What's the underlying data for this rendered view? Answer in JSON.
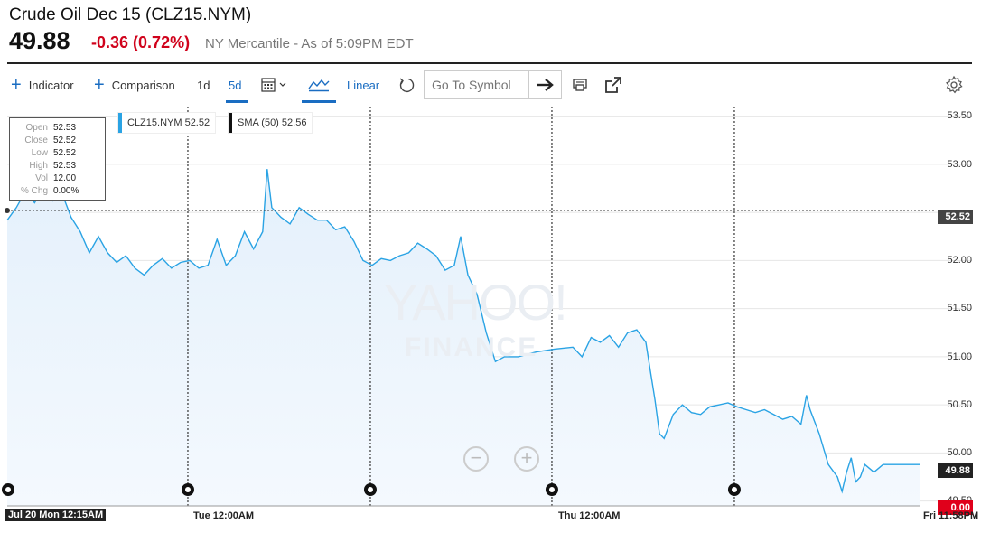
{
  "header": {
    "title": "Crude Oil Dec 15 (CLZ15.NYM)",
    "price": "49.88",
    "change": "-0.36",
    "change_pct": "(0.72%)",
    "exchange": "NY Mercantile - As of 5:09PM EDT",
    "change_color": "#d0021b"
  },
  "toolbar": {
    "indicator_label": "Indicator",
    "comparison_label": "Comparison",
    "range_1d": "1d",
    "range_5d": "5d",
    "scale_label": "Linear",
    "search_placeholder": "Go To Symbol",
    "icons": [
      "plus-icon",
      "calendar-icon",
      "mountain-chart-icon",
      "undo-icon",
      "arrow-right-icon",
      "print-icon",
      "share-icon",
      "gear-icon"
    ]
  },
  "tooltip": {
    "rows": [
      {
        "k": "Open",
        "v": "52.53"
      },
      {
        "k": "Close",
        "v": "52.52"
      },
      {
        "k": "Low",
        "v": "52.52"
      },
      {
        "k": "High",
        "v": "52.53"
      },
      {
        "k": "Vol",
        "v": "12.00"
      },
      {
        "k": "% Chg",
        "v": "0.00%"
      }
    ]
  },
  "legend": {
    "series_label": "CLZ15.NYM 52.52",
    "sma_label": "SMA (50) 52.56",
    "series_color": "#2aa3e4",
    "sma_color": "#111111"
  },
  "watermark": {
    "line1": "YAHOO!",
    "line2": "FINANCE"
  },
  "price_tags": {
    "current_price": "52.52",
    "last": "49.88",
    "change": "0.00"
  },
  "y_tick_labels": [
    "53.50",
    "53.00",
    "52.50",
    "52.00",
    "51.50",
    "51.00",
    "50.50",
    "50.00",
    "49.50"
  ],
  "x_tick_labels": {
    "start": "Jul 20 Mon 12:15AM",
    "tue": "Tue 12:00AM",
    "thu": "Thu 12:00AM",
    "fri": "Fri 11:58PM"
  },
  "chart_data": {
    "type": "area",
    "series": [
      {
        "name": "CLZ15.NYM",
        "points": [
          [
            0.0,
            52.42
          ],
          [
            0.01,
            52.55
          ],
          [
            0.02,
            52.72
          ],
          [
            0.03,
            52.6
          ],
          [
            0.04,
            52.75
          ],
          [
            0.05,
            52.62
          ],
          [
            0.06,
            52.7
          ],
          [
            0.07,
            52.45
          ],
          [
            0.08,
            52.3
          ],
          [
            0.09,
            52.08
          ],
          [
            0.1,
            52.25
          ],
          [
            0.11,
            52.08
          ],
          [
            0.12,
            51.98
          ],
          [
            0.13,
            52.05
          ],
          [
            0.14,
            51.92
          ],
          [
            0.15,
            51.85
          ],
          [
            0.16,
            51.95
          ],
          [
            0.17,
            52.02
          ],
          [
            0.18,
            51.92
          ],
          [
            0.19,
            51.98
          ],
          [
            0.2,
            52.0
          ],
          [
            0.21,
            51.92
          ],
          [
            0.22,
            51.95
          ],
          [
            0.23,
            52.22
          ],
          [
            0.24,
            51.95
          ],
          [
            0.25,
            52.05
          ],
          [
            0.26,
            52.3
          ],
          [
            0.27,
            52.12
          ],
          [
            0.28,
            52.3
          ],
          [
            0.285,
            52.95
          ],
          [
            0.29,
            52.55
          ],
          [
            0.3,
            52.45
          ],
          [
            0.31,
            52.38
          ],
          [
            0.32,
            52.55
          ],
          [
            0.33,
            52.48
          ],
          [
            0.34,
            52.42
          ],
          [
            0.35,
            52.42
          ],
          [
            0.36,
            52.32
          ],
          [
            0.37,
            52.35
          ],
          [
            0.38,
            52.2
          ],
          [
            0.39,
            52.0
          ],
          [
            0.4,
            51.95
          ],
          [
            0.41,
            52.02
          ],
          [
            0.42,
            52.0
          ],
          [
            0.43,
            52.05
          ],
          [
            0.44,
            52.08
          ],
          [
            0.45,
            52.18
          ],
          [
            0.46,
            52.12
          ],
          [
            0.47,
            52.05
          ],
          [
            0.48,
            51.9
          ],
          [
            0.49,
            51.95
          ],
          [
            0.497,
            52.25
          ],
          [
            0.505,
            51.85
          ],
          [
            0.515,
            51.65
          ],
          [
            0.525,
            51.25
          ],
          [
            0.535,
            50.95
          ],
          [
            0.545,
            51.0
          ],
          [
            0.56,
            51.0
          ],
          [
            0.58,
            51.05
          ],
          [
            0.6,
            51.08
          ],
          [
            0.62,
            51.1
          ],
          [
            0.63,
            51.0
          ],
          [
            0.64,
            51.2
          ],
          [
            0.65,
            51.15
          ],
          [
            0.66,
            51.22
          ],
          [
            0.67,
            51.1
          ],
          [
            0.68,
            51.25
          ],
          [
            0.69,
            51.28
          ],
          [
            0.7,
            51.15
          ],
          [
            0.705,
            50.85
          ],
          [
            0.71,
            50.55
          ],
          [
            0.715,
            50.2
          ],
          [
            0.72,
            50.15
          ],
          [
            0.73,
            50.4
          ],
          [
            0.74,
            50.5
          ],
          [
            0.75,
            50.42
          ],
          [
            0.76,
            50.4
          ],
          [
            0.77,
            50.48
          ],
          [
            0.78,
            50.5
          ],
          [
            0.79,
            50.52
          ],
          [
            0.8,
            50.48
          ],
          [
            0.81,
            50.45
          ],
          [
            0.82,
            50.42
          ],
          [
            0.83,
            50.45
          ],
          [
            0.84,
            50.4
          ],
          [
            0.85,
            50.35
          ],
          [
            0.86,
            50.38
          ],
          [
            0.87,
            50.3
          ],
          [
            0.876,
            50.6
          ],
          [
            0.88,
            50.45
          ],
          [
            0.89,
            50.2
          ],
          [
            0.9,
            49.88
          ],
          [
            0.91,
            49.75
          ],
          [
            0.915,
            49.6
          ],
          [
            0.92,
            49.8
          ],
          [
            0.925,
            49.95
          ],
          [
            0.93,
            49.7
          ],
          [
            0.935,
            49.75
          ],
          [
            0.94,
            49.88
          ],
          [
            0.95,
            49.8
          ],
          [
            0.96,
            49.88
          ],
          [
            1.0,
            49.88
          ]
        ]
      },
      {
        "name": "SMA (50)",
        "value": "52.56"
      }
    ],
    "xlabel": "",
    "ylabel": "",
    "ylim": [
      49.45,
      53.6
    ],
    "crosshair_value": 52.52,
    "grid": true,
    "legend": "top-left"
  }
}
